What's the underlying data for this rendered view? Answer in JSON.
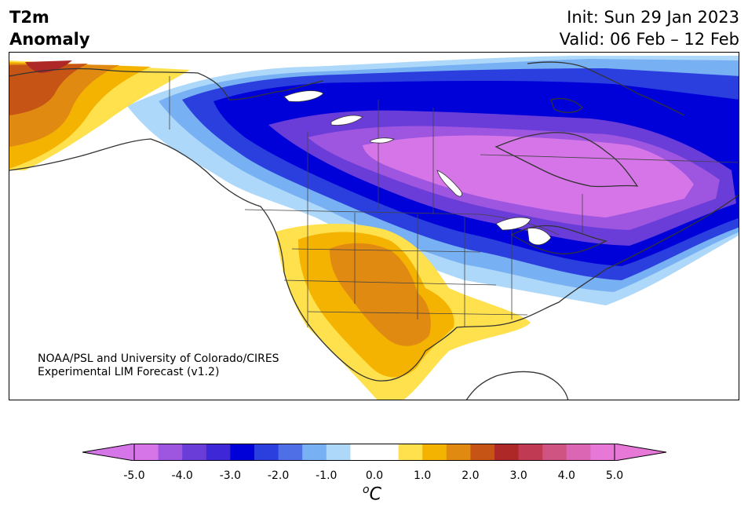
{
  "title": {
    "left_line1": "T2m",
    "left_line2": "Anomaly",
    "init": "Init: Sun 29 Jan 2023",
    "valid": "Valid: 06 Feb – 12 Feb"
  },
  "credit": {
    "line1": "NOAA/PSL and University of Colorado/CIRES",
    "line2": "Experimental LIM Forecast (v1.2)"
  },
  "colorbar": {
    "unit_base": "C",
    "unit_sup": "o",
    "ticks": [
      "-5.0",
      "-4.0",
      "-3.0",
      "-2.0",
      "-1.0",
      "0.0",
      "1.0",
      "2.0",
      "3.0",
      "4.0",
      "5.0"
    ],
    "colors": [
      "#d575e8",
      "#9e55df",
      "#6a3dd8",
      "#3d27d6",
      "#0000d9",
      "#2a3fde",
      "#4f6fe6",
      "#78b0f4",
      "#aed8fa",
      "#ffffff",
      "#ffffff",
      "#ffe04d",
      "#f4b300",
      "#e08a12",
      "#c65414",
      "#ae2828",
      "#c13a54",
      "#cf5481",
      "#db66b4",
      "#e878d8"
    ],
    "under_color": "#d575e8",
    "over_color": "#e878d8"
  }
}
